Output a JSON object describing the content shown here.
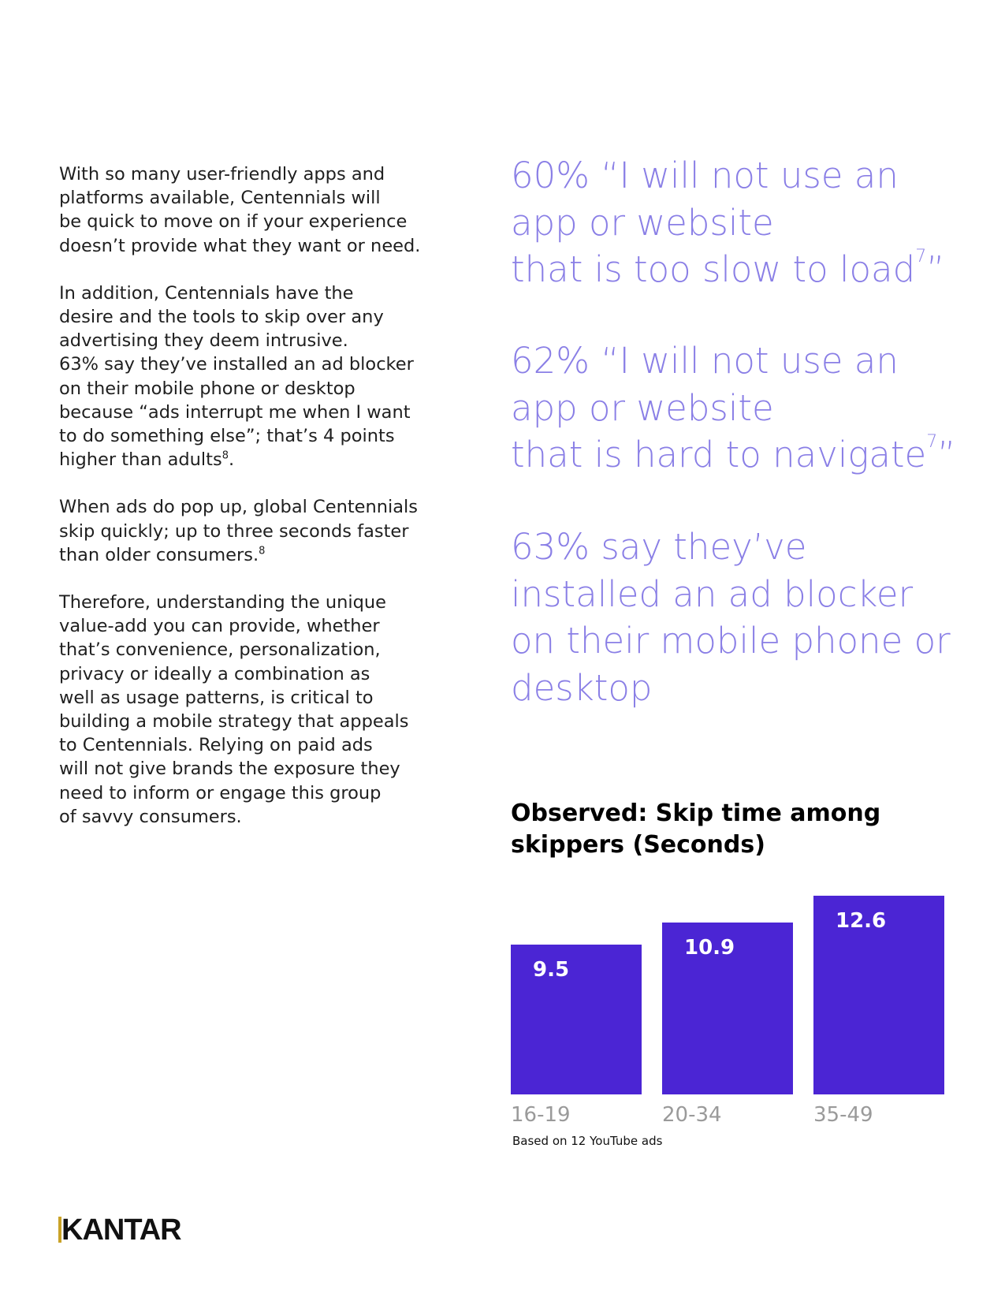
{
  "body": {
    "p1": "With so many user-friendly apps and\nplatforms available, Centennials will\nbe quick to move on if your experience\ndoesn’t provide what they want or need.",
    "p2": "In addition, Centennials have the\ndesire and the tools to skip over any\nadvertising they deem intrusive.\n63% say they’ve installed an ad blocker\non their mobile phone or desktop\nbecause “ads interrupt me when I want\nto do something else”; that’s 4 points\nhigher than adults",
    "p2_fn": "8",
    "p2_end": ".",
    "p3": "When ads do pop up, global Centennials\nskip quickly; up to three seconds faster\nthan older consumers.",
    "p3_fn": "8",
    "p4": "Therefore, understanding the unique\nvalue-add you can provide, whether\nthat’s convenience, personalization,\nprivacy or ideally a combination as\nwell as usage patterns, is critical to\nbuilding a mobile strategy that appeals\nto Centennials. Relying on paid ads\nwill not give brands the exposure they\nneed to inform or engage this group\nof savvy consumers."
  },
  "stats": {
    "s1": "60% “I will not use an\napp or website\nthat is too slow to load",
    "s1_fn": "7",
    "s1_end": "”",
    "s2": "62% “I will not use an\napp or website\nthat is hard to navigate",
    "s2_fn": "7",
    "s2_end": "”",
    "s3": "63% say they’ve\ninstalled an ad blocker\non their mobile phone or\ndesktop"
  },
  "chart_data": {
    "type": "bar",
    "title": "Observed: Skip time among skippers (Seconds)",
    "categories": [
      "16-19",
      "20-34",
      "35-49"
    ],
    "values": [
      9.5,
      10.9,
      12.6
    ],
    "value_labels": [
      "9.5",
      "10.9",
      "12.6"
    ],
    "bar_color": "#4b25d4",
    "ylim": [
      0,
      12.6
    ],
    "grid": false,
    "note": "Based on 12 YouTube ads"
  },
  "footer": {
    "logo": "KANTAR"
  }
}
